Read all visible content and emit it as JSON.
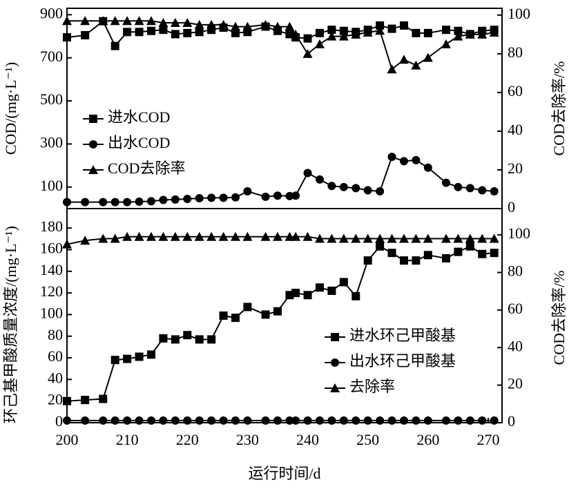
{
  "chart_data": [
    {
      "type": "line",
      "y_label": "COD/(mg·L⁻¹)",
      "y2_label": "COD去除率/%",
      "legend": "upper left",
      "x": [
        200,
        203,
        206,
        208,
        210,
        212,
        214,
        216,
        218,
        220,
        222,
        224,
        226,
        228,
        230,
        233,
        235,
        237,
        238,
        240,
        242,
        244,
        246,
        248,
        250,
        252,
        254,
        256,
        258,
        260,
        263,
        265,
        267,
        269,
        271
      ],
      "xlim": [
        200,
        272.3
      ],
      "ylim": [
        0,
        930
      ],
      "yticks": [
        100,
        300,
        500,
        700,
        900
      ],
      "y2lim": [
        0,
        103.5
      ],
      "y2ticks": [
        0,
        20,
        40,
        60,
        80,
        100
      ],
      "series": [
        {
          "name": "进水COD",
          "color": "#000000",
          "marker": "square",
          "values": [
            795,
            805,
            870,
            755,
            820,
            820,
            825,
            830,
            810,
            815,
            820,
            830,
            840,
            815,
            820,
            845,
            825,
            810,
            795,
            790,
            815,
            830,
            825,
            820,
            830,
            850,
            835,
            850,
            815,
            815,
            830,
            825,
            810,
            825,
            830
          ]
        },
        {
          "name": "出水COD",
          "color": "#000000",
          "marker": "circle",
          "values": [
            30,
            30,
            30,
            30,
            30,
            32,
            34,
            40,
            42,
            45,
            48,
            50,
            50,
            52,
            80,
            55,
            60,
            58,
            60,
            165,
            135,
            105,
            100,
            95,
            85,
            80,
            240,
            220,
            225,
            190,
            120,
            100,
            95,
            85,
            80
          ]
        },
        {
          "name": "COD去除率",
          "color": "#000000",
          "marker": "triangle",
          "axis": "y2",
          "values": [
            97,
            97,
            97,
            97,
            97,
            97,
            97,
            96,
            96,
            96,
            95,
            95,
            95,
            94,
            94,
            95,
            94,
            94,
            90,
            80,
            85,
            89,
            89,
            90,
            91,
            92,
            72,
            77,
            74,
            78,
            85,
            89,
            90,
            90,
            91
          ]
        }
      ]
    },
    {
      "type": "line",
      "x_label": "运行时间/d",
      "y_label": "环己基甲酸质量浓度/(mg·L⁻¹)",
      "y2_label": "COD去除率/%",
      "legend": "lower right",
      "x": [
        200,
        203,
        206,
        208,
        210,
        212,
        214,
        216,
        218,
        220,
        222,
        224,
        226,
        228,
        230,
        233,
        235,
        237,
        238,
        240,
        242,
        244,
        246,
        248,
        250,
        252,
        254,
        256,
        258,
        260,
        263,
        265,
        267,
        269,
        271
      ],
      "xlim": [
        200,
        272.3
      ],
      "xticks": [
        200,
        210,
        220,
        230,
        240,
        250,
        260,
        270
      ],
      "ylim": [
        0,
        198
      ],
      "yticks": [
        0,
        20,
        40,
        60,
        80,
        100,
        120,
        140,
        160,
        180
      ],
      "y2lim": [
        0,
        114
      ],
      "y2ticks": [
        0,
        20,
        40,
        60,
        80,
        100
      ],
      "series": [
        {
          "name": "进水环己甲酸基",
          "color": "#000000",
          "marker": "square",
          "values": [
            20,
            21,
            22,
            58,
            59,
            61,
            63,
            78,
            77,
            81,
            77,
            77,
            99,
            97,
            107,
            100,
            103,
            118,
            120,
            118,
            125,
            122,
            130,
            117,
            150,
            163,
            157,
            150,
            150,
            155,
            152,
            158,
            163,
            156,
            157
          ]
        },
        {
          "name": "出水环己甲酸基",
          "color": "#000000",
          "marker": "circle",
          "values": [
            2,
            2,
            2,
            2,
            2,
            2,
            2,
            2,
            2,
            2,
            2,
            2,
            2,
            2,
            2,
            2,
            2,
            2,
            2,
            2,
            2,
            2,
            2,
            2,
            2,
            2,
            2,
            2,
            2,
            2,
            2,
            2,
            2,
            2,
            2
          ]
        },
        {
          "name": "去除率",
          "color": "#000000",
          "marker": "triangle",
          "axis": "y2",
          "values": [
            95,
            97,
            98,
            98,
            99,
            99,
            99,
            99,
            99,
            99,
            99,
            99,
            99,
            99,
            99,
            99,
            99,
            99,
            99,
            99,
            98,
            98,
            98,
            98,
            98,
            98,
            98,
            98,
            98,
            98,
            98,
            98,
            98,
            98,
            98
          ]
        }
      ]
    }
  ]
}
